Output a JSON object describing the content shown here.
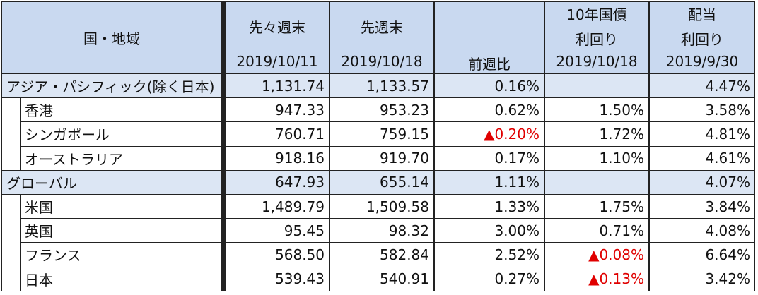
{
  "header": {
    "columns": [
      {
        "lines": [
          "国・地域"
        ]
      },
      {
        "lines": [
          "先々週末",
          "2019/10/11"
        ]
      },
      {
        "lines": [
          "先週末",
          "2019/10/18"
        ]
      },
      {
        "lines": [
          "前週比"
        ]
      },
      {
        "lines": [
          "10年国債",
          "利回り",
          "2019/10/18"
        ]
      },
      {
        "lines": [
          "配当",
          "利回り",
          "2019/9/30"
        ]
      }
    ]
  },
  "negative_color": "#e00000",
  "rows": [
    {
      "group": true,
      "cells": [
        "アジア・パシフィック(除く日本)",
        "1,131.74",
        "1,133.57",
        "0.16%",
        "",
        "4.47%"
      ]
    },
    {
      "group": false,
      "cells": [
        "香港",
        "947.33",
        "953.23",
        "0.62%",
        "1.50%",
        "3.58%"
      ]
    },
    {
      "group": false,
      "cells": [
        "シンガポール",
        "760.71",
        "759.15",
        {
          "text": "▲0.20%",
          "negative": true
        },
        "1.72%",
        "4.81%"
      ]
    },
    {
      "group": false,
      "cells": [
        "オーストラリア",
        "918.16",
        "919.70",
        "0.17%",
        "1.10%",
        "4.61%"
      ]
    },
    {
      "group": true,
      "cells": [
        "グローバル",
        "647.93",
        "655.14",
        "1.11%",
        "",
        "4.07%"
      ]
    },
    {
      "group": false,
      "cells": [
        "米国",
        "1,489.79",
        "1,509.58",
        "1.33%",
        "1.75%",
        "3.84%"
      ]
    },
    {
      "group": false,
      "cells": [
        "英国",
        "95.45",
        "98.32",
        "3.00%",
        "0.71%",
        "4.08%"
      ]
    },
    {
      "group": false,
      "cells": [
        "フランス",
        "568.50",
        "582.84",
        "2.52%",
        {
          "text": "▲0.08%",
          "negative": true
        },
        "6.64%"
      ]
    },
    {
      "group": false,
      "cells": [
        "日本",
        "539.43",
        "540.91",
        "0.27%",
        {
          "text": "▲0.13%",
          "negative": true
        },
        "3.42%"
      ]
    }
  ]
}
